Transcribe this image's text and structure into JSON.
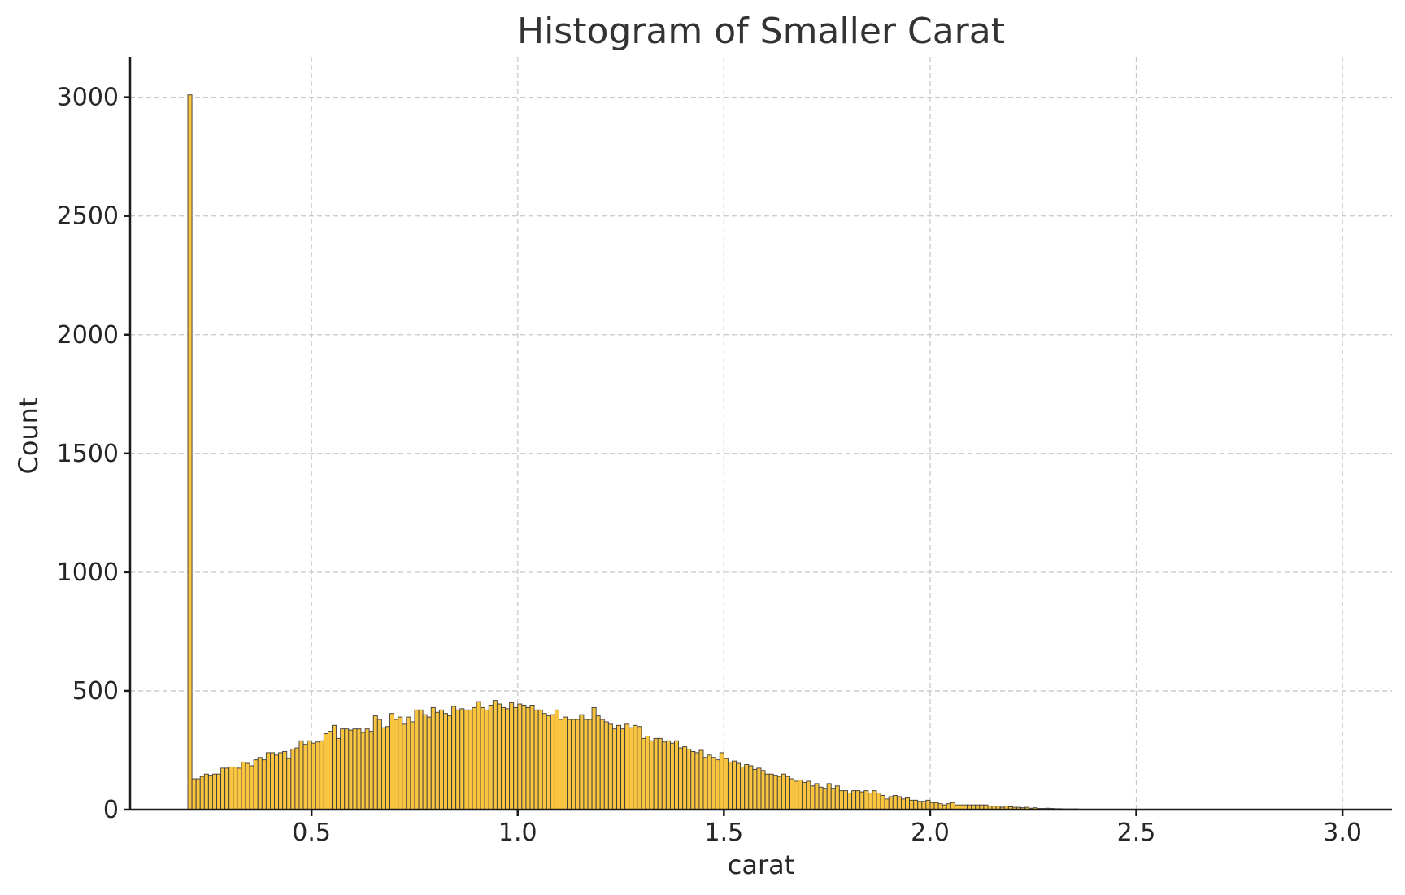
{
  "chart_data": {
    "type": "bar",
    "title": "Histogram of Smaller Carat",
    "xlabel": "carat",
    "ylabel": "Count",
    "xlim": [
      0.06,
      3.12
    ],
    "ylim": [
      0,
      3170
    ],
    "xticks": [
      0.5,
      1.0,
      1.5,
      2.0,
      2.5,
      3.0
    ],
    "xtick_labels": [
      "0.5",
      "1.0",
      "1.5",
      "2.0",
      "2.5",
      "3.0"
    ],
    "yticks": [
      0,
      500,
      1000,
      1500,
      2000,
      2500,
      3000
    ],
    "ytick_labels": [
      "0",
      "500",
      "1000",
      "1500",
      "2000",
      "2500",
      "3000"
    ],
    "grid": true,
    "colors": {
      "bar": "#f9c440",
      "edge": "#3a3a3a",
      "grid": "#c8c8c8",
      "axis": "#1a1a1a"
    },
    "bin_start": 0.2,
    "bin_width": 0.01,
    "values": [
      3010,
      130,
      130,
      140,
      150,
      145,
      150,
      150,
      175,
      175,
      180,
      180,
      175,
      200,
      195,
      185,
      210,
      220,
      210,
      240,
      240,
      230,
      240,
      245,
      215,
      255,
      260,
      290,
      275,
      290,
      280,
      285,
      290,
      320,
      330,
      355,
      300,
      340,
      340,
      335,
      340,
      340,
      325,
      340,
      330,
      395,
      380,
      345,
      350,
      405,
      380,
      390,
      360,
      390,
      370,
      420,
      420,
      400,
      390,
      430,
      410,
      420,
      405,
      395,
      435,
      420,
      425,
      420,
      420,
      430,
      455,
      430,
      420,
      440,
      460,
      445,
      430,
      425,
      450,
      430,
      445,
      440,
      430,
      440,
      420,
      420,
      405,
      395,
      400,
      420,
      380,
      390,
      380,
      380,
      380,
      400,
      380,
      380,
      430,
      395,
      380,
      370,
      360,
      340,
      355,
      340,
      360,
      345,
      355,
      350,
      300,
      310,
      290,
      300,
      300,
      285,
      290,
      280,
      290,
      260,
      265,
      255,
      245,
      240,
      250,
      220,
      230,
      220,
      210,
      240,
      215,
      200,
      205,
      195,
      180,
      190,
      185,
      170,
      175,
      165,
      150,
      150,
      145,
      140,
      150,
      140,
      130,
      120,
      125,
      115,
      120,
      100,
      110,
      95,
      90,
      110,
      90,
      100,
      80,
      80,
      70,
      80,
      80,
      75,
      80,
      70,
      80,
      70,
      60,
      45,
      55,
      60,
      55,
      45,
      50,
      40,
      40,
      35,
      35,
      40,
      30,
      30,
      25,
      20,
      25,
      30,
      20,
      20,
      20,
      20,
      20,
      20,
      20,
      20,
      15,
      15,
      15,
      10,
      15,
      12,
      10,
      10,
      8,
      10,
      6,
      8,
      5,
      5,
      6,
      5,
      4,
      4,
      3,
      3,
      3,
      3,
      2,
      2,
      2,
      2,
      2,
      2,
      2,
      1,
      1,
      1,
      1,
      1,
      1,
      1,
      1
    ]
  }
}
